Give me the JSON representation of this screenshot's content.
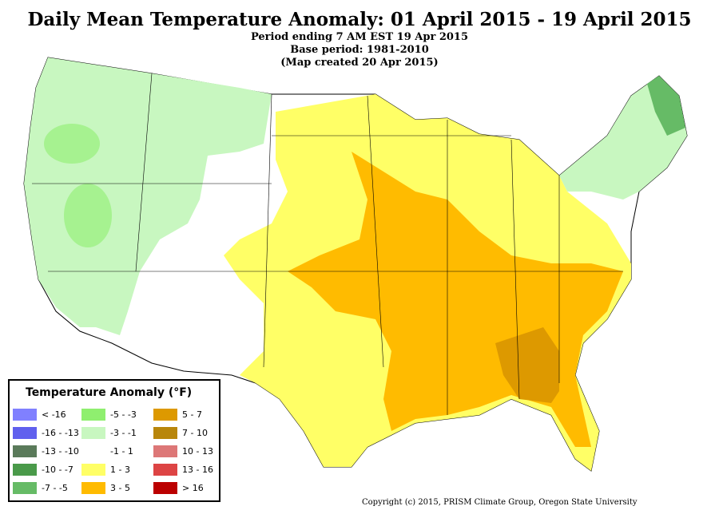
{
  "header": {
    "title": "Daily Mean Temperature Anomaly: 01 April 2015 - 19 April 2015",
    "period": "Period ending 7 AM EST 19 Apr 2015",
    "base": "Base period: 1981-2010",
    "created": "(Map created 20 Apr 2015)"
  },
  "legend": {
    "title": "Temperature Anomaly (°F)",
    "items": [
      {
        "label": "< -16",
        "color": "#8080ff"
      },
      {
        "label": "-16 - -13",
        "color": "#6060ee"
      },
      {
        "label": "-13 - -10",
        "color": "#5a7a5a"
      },
      {
        "label": "-10 - -7",
        "color": "#4a9a4a"
      },
      {
        "label": "-7 - -5",
        "color": "#66bb66"
      },
      {
        "label": "-5 - -3",
        "color": "#8fef6f"
      },
      {
        "label": "-3 - -1",
        "color": "#c8f7c0"
      },
      {
        "label": "-1 - 1",
        "color": "#ffffff"
      },
      {
        "label": "1 - 3",
        "color": "#ffff66"
      },
      {
        "label": "3 - 5",
        "color": "#ffbb00"
      },
      {
        "label": "5 - 7",
        "color": "#dd9900"
      },
      {
        "label": "7 - 10",
        "color": "#b8860b"
      },
      {
        "label": "10 - 13",
        "color": "#dd7777"
      },
      {
        "label": "13 - 16",
        "color": "#dd4444"
      },
      {
        "label": "> 16",
        "color": "#bb0000"
      }
    ]
  },
  "copyright": "Copyright (c) 2015, PRISM Climate Group, Oregon State University",
  "map_colors": {
    "cool": "#c8f7c0",
    "cool_mid": "#8fef6f",
    "cold": "#66bb66",
    "neutral": "#ffffff",
    "warm": "#ffff66",
    "warmer": "#ffbb00",
    "warmest": "#dd9900",
    "border": "#000000"
  }
}
